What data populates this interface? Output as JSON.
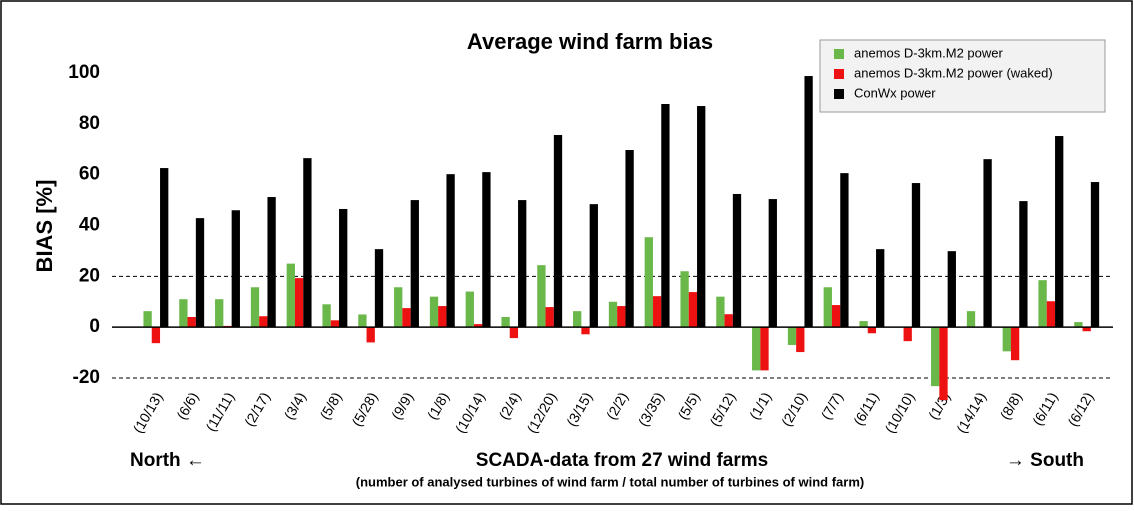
{
  "chart_data": {
    "type": "bar",
    "title": "Average wind farm bias",
    "y_label": "BIAS [%]",
    "x_label": "SCADA-data from 27 wind farms",
    "x_sublabel": "(number of analysed turbines of wind farm / total number of turbines of wind farm)",
    "left_note": "North ←",
    "right_note": "→ South",
    "categories": [
      "(10/13)",
      "(6/6)",
      "(11/11)",
      "(2/17)",
      "(3/4)",
      "(5/8)",
      "(5/28)",
      "(9/9)",
      "(1/8)",
      "(10/14)",
      "(2/4)",
      "(12/20)",
      "(3/15)",
      "(2/2)",
      "(3/35)",
      "(5/5)",
      "(5/12)",
      "(1/1)",
      "(2/10)",
      "(7/7)",
      "(6/11)",
      "(10/10)",
      "(1/3)",
      "(14/14)",
      "(8/8)",
      "(6/11)",
      "(6/12)"
    ],
    "series": [
      {
        "name": "anemos D-3km.M2 power",
        "color": "#6ab74a",
        "values": [
          6.3,
          11,
          11,
          15.7,
          25,
          9,
          5,
          15.7,
          12,
          14,
          4,
          24.4,
          6.3,
          10,
          35.4,
          22,
          12,
          -17,
          -7,
          15.7,
          2.4,
          0,
          -23.2,
          6.3,
          -9.5,
          18.5,
          2
        ]
      },
      {
        "name": "anemos D-3km.M2 power (waked)",
        "color": "#ee1111",
        "values": [
          -6.3,
          4,
          0.5,
          4.3,
          19.3,
          2.7,
          -6,
          7.5,
          8.3,
          1.2,
          -4.3,
          7.9,
          -2.8,
          8.3,
          12.2,
          13.8,
          5.1,
          -17,
          -9.8,
          8.7,
          -2.4,
          -5.5,
          -28.7,
          0,
          -13,
          10.2,
          -1.6
        ]
      },
      {
        "name": "ConWx power",
        "color": "#000000",
        "values": [
          62.6,
          42.9,
          46,
          51.2,
          66.5,
          46.5,
          30.7,
          50,
          60.2,
          61,
          50,
          75.6,
          48.4,
          69.7,
          87.8,
          87,
          52.4,
          50.4,
          98.8,
          60.6,
          30.7,
          56.7,
          29.9,
          66.1,
          49.6,
          75.2,
          57.1
        ]
      }
    ],
    "ylim": [
      -20,
      100
    ],
    "yticks": [
      -20,
      0,
      20,
      40,
      60,
      80,
      100
    ],
    "reference_lines": [
      20,
      -20
    ],
    "legend": "upper right"
  }
}
